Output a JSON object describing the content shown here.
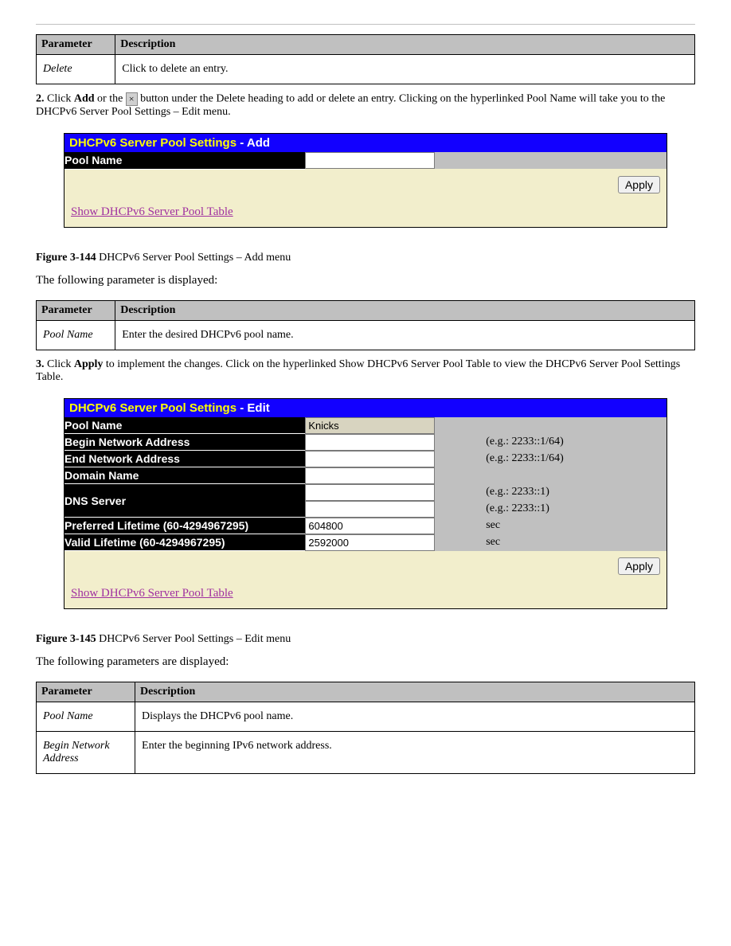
{
  "figureTop": {
    "th_parameter": "Parameter",
    "th_desc": "Description",
    "row_label": "Delete",
    "row_desc": "Click to delete an entry."
  },
  "instrAdd": {
    "step": "2.",
    "prefix": "Click ",
    "bold": "Add",
    "middle": " or the ",
    "icon": "×",
    "suffix": " button under the Delete heading to add or delete an entry. Clicking on the hyperlinked Pool Name will take you to the DHCPv6 Server Pool Settings – Edit menu."
  },
  "panelAdd": {
    "heading": "DHCPv6 Server Pool Settings",
    "sub": "- Add",
    "poolNameLabel": "Pool Name",
    "poolNameValue": "",
    "applyLabel": "Apply",
    "linkText": "Show DHCPv6 Server Pool Table"
  },
  "captionAdd": {
    "fig": "Figure 3-144",
    "text": " DHCPv6 Server Pool Settings – Add menu",
    "below": "The following parameter is displayed:"
  },
  "tableAdd": {
    "th_parameter": "Parameter",
    "th_desc": "Description",
    "row_label": "Pool Name",
    "row_desc": "Enter the desired DHCPv6 pool name."
  },
  "instrEdit": {
    "step": "3.",
    "prefix": " Click ",
    "bold": "Apply",
    "suffix": " to implement the changes. Click on the hyperlinked Show DHCPv6 Server Pool Table to view the DHCPv6 Server Pool Settings Table."
  },
  "panelEdit": {
    "heading": "DHCPv6 Server Pool Settings",
    "sub": "- Edit",
    "poolNameLabel": "Pool Name",
    "poolNameValue": "Knicks",
    "beginLabel": "Begin Network Address",
    "beginValue": "",
    "beginHint": "(e.g.: 2233::1/64)",
    "endLabel": "End Network Address",
    "endValue": "",
    "endHint": "(e.g.: 2233::1/64)",
    "domainLabel": "Domain Name",
    "domainValue": "",
    "dnsLabel": "DNS Server",
    "dns1Value": "",
    "dns1Hint": "(e.g.: 2233::1)",
    "dns2Value": "",
    "dns2Hint": "(e.g.: 2233::1)",
    "prefLabel": "Preferred Lifetime (60-4294967295)",
    "prefValue": "604800",
    "prefHint": "sec",
    "validLabel": "Valid Lifetime (60-4294967295)",
    "validValue": "2592000",
    "validHint": "sec",
    "applyLabel": "Apply",
    "linkText": "Show DHCPv6 Server Pool Table"
  },
  "captionEdit": {
    "fig": "Figure 3-145",
    "text": " DHCPv6 Server Pool Settings – Edit menu",
    "below": "The following parameters are displayed:"
  },
  "tableEdit": {
    "th_parameter": "Parameter",
    "th_desc": "Description",
    "row1_label": "Pool Name",
    "row1_desc": "Displays the DHCPv6 pool name.",
    "row2_label": "Begin Network Address",
    "row2_desc": "Enter the beginning IPv6 network address."
  }
}
